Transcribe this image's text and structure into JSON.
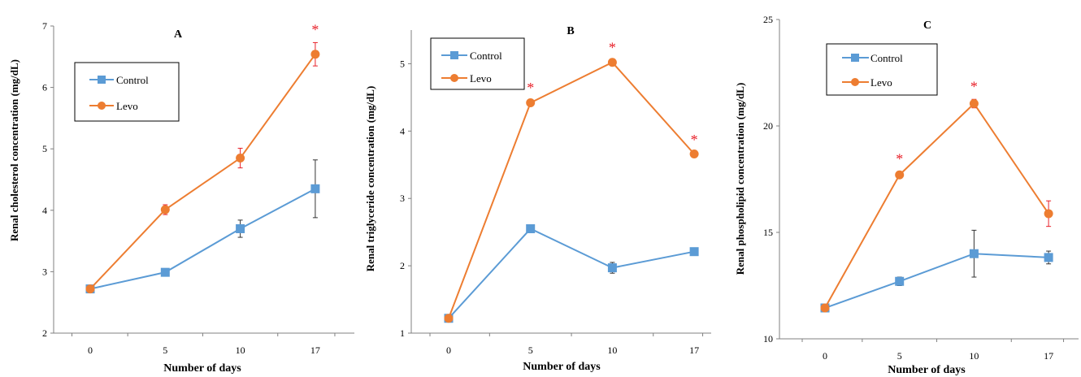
{
  "colors": {
    "control": "#5b9bd5",
    "levo": "#ed7d31",
    "error_control": "#333333",
    "error_levo": "#e8212a",
    "star": "#e8212a"
  },
  "chart_data": [
    {
      "type": "line",
      "title": "A",
      "xlabel": "Number of days",
      "ylabel": "Renal cholesterol concentration (mg/dL)",
      "categories": [
        "0",
        "5",
        "10",
        "17"
      ],
      "ylim": [
        2,
        7
      ],
      "yticks": [
        "2",
        "3",
        "4",
        "5",
        "6",
        "7"
      ],
      "legend": "top-left",
      "series": [
        {
          "name": "Control",
          "values": [
            2.72,
            2.99,
            3.7,
            4.35
          ],
          "errors": [
            0.03,
            0.04,
            0.14,
            0.47
          ]
        },
        {
          "name": "Levo",
          "values": [
            2.72,
            4.01,
            4.85,
            6.54
          ],
          "errors": [
            0.03,
            0.08,
            0.16,
            0.19
          ]
        }
      ],
      "significance": [
        {
          "series": "Levo",
          "index": 3,
          "mark": "*"
        }
      ]
    },
    {
      "type": "line",
      "title": "B",
      "xlabel": "Number of days",
      "ylabel": "Renal triglyceride concentration (mg/dL)",
      "categories": [
        "0",
        "5",
        "10",
        "17"
      ],
      "ylim": [
        1,
        5.5
      ],
      "yticks": [
        "1",
        "2",
        "3",
        "4",
        "5"
      ],
      "legend": "top-left",
      "series": [
        {
          "name": "Control",
          "values": [
            1.22,
            2.55,
            1.97,
            2.21
          ],
          "errors": [
            0.03,
            0.04,
            0.08,
            0.03
          ]
        },
        {
          "name": "Levo",
          "values": [
            1.22,
            4.42,
            5.02,
            3.66
          ],
          "errors": [
            0.03,
            0.03,
            0.03,
            0.02
          ]
        }
      ],
      "significance": [
        {
          "series": "Levo",
          "index": 1,
          "mark": "*"
        },
        {
          "series": "Levo",
          "index": 2,
          "mark": "*"
        },
        {
          "series": "Levo",
          "index": 3,
          "mark": "*"
        }
      ]
    },
    {
      "type": "line",
      "title": "C",
      "xlabel": "Number of days",
      "ylabel": "Renal phospholipid concentration (mg/dL)",
      "categories": [
        "0",
        "5",
        "10",
        "17"
      ],
      "ylim": [
        10,
        25
      ],
      "yticks": [
        "10",
        "15",
        "20",
        "25"
      ],
      "legend": "top-left",
      "series": [
        {
          "name": "Control",
          "values": [
            11.45,
            12.7,
            14.0,
            13.82
          ],
          "errors": [
            0.1,
            0.2,
            1.1,
            0.3
          ]
        },
        {
          "name": "Levo",
          "values": [
            11.45,
            17.7,
            21.05,
            15.88
          ],
          "errors": [
            0.1,
            0.15,
            0.2,
            0.6
          ]
        }
      ],
      "significance": [
        {
          "series": "Levo",
          "index": 1,
          "mark": "*"
        },
        {
          "series": "Levo",
          "index": 2,
          "mark": "*"
        }
      ]
    }
  ]
}
